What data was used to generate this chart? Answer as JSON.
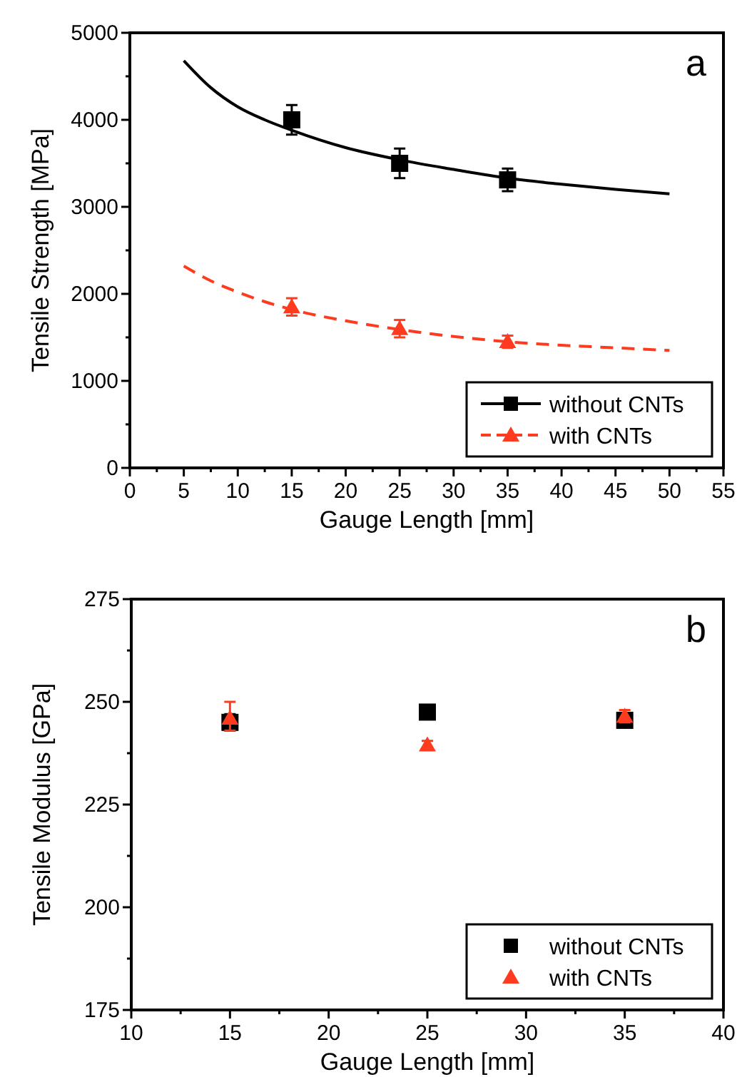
{
  "chart_data": [
    {
      "type": "scatter",
      "xlabel": "Gauge Length [mm]",
      "ylabel": "Tensile Strength [MPa]",
      "annotations": [
        "a"
      ],
      "xlim": [
        0,
        55
      ],
      "ylim": [
        0,
        5000
      ],
      "xticks": [
        0,
        {
          "value": 2.5,
          "label": null
        },
        5,
        {
          "value": 7.5,
          "label": null
        },
        10,
        {
          "value": 12.5,
          "label": null
        },
        15,
        {
          "value": 17.5,
          "label": null
        },
        20,
        {
          "value": 22.5,
          "label": null
        },
        25,
        {
          "value": 27.5,
          "label": null
        },
        30,
        {
          "value": 32.5,
          "label": null
        },
        35,
        {
          "value": 37.5,
          "label": null
        },
        40,
        {
          "value": 42.5,
          "label": null
        },
        45,
        {
          "value": 47.5,
          "label": null
        },
        50,
        {
          "value": 52.5,
          "label": null
        },
        55
      ],
      "yticks": [
        0,
        {
          "value": 500,
          "label": null
        },
        1000,
        {
          "value": 1500,
          "label": null
        },
        2000,
        {
          "value": 2500,
          "label": null
        },
        3000,
        {
          "value": 3500,
          "label": null
        },
        4000,
        {
          "value": 4500,
          "label": null
        },
        5000
      ],
      "legend": "bottom right",
      "grid": false,
      "series": [
        {
          "name": "without CNTs",
          "marker": "square",
          "line_style": "solid",
          "color": "#000000",
          "x": [
            15,
            25,
            35
          ],
          "values": [
            4000,
            3500,
            3310
          ],
          "errors": [
            170,
            170,
            130
          ]
        },
        {
          "name": "with CNTs",
          "marker": "triangle",
          "line_style": "dashed",
          "color": "#ff3b1f",
          "x": [
            15,
            25,
            35
          ],
          "values": [
            1850,
            1600,
            1450
          ],
          "errors": [
            100,
            100,
            70
          ]
        },
        {
          "type": "line",
          "line_style": "solid",
          "color": "#000000",
          "x": [
            5,
            7.5,
            10,
            12.5,
            15,
            20,
            25,
            30,
            35,
            40,
            45,
            50
          ],
          "values": [
            4680,
            4370,
            4150,
            4000,
            3880,
            3680,
            3540,
            3430,
            3330,
            3260,
            3200,
            3150
          ]
        },
        {
          "type": "line",
          "line_style": "dashed",
          "color": "#ff3b1f",
          "x": [
            5,
            7.5,
            10,
            12.5,
            15,
            20,
            25,
            30,
            35,
            40,
            45,
            50
          ],
          "values": [
            2320,
            2150,
            2020,
            1910,
            1820,
            1690,
            1590,
            1510,
            1450,
            1410,
            1380,
            1350
          ]
        }
      ]
    },
    {
      "type": "scatter",
      "xlabel": "Gauge Length [mm]",
      "ylabel": "Tensile Modulus [GPa]",
      "annotations": [
        "b"
      ],
      "xlim": [
        10,
        40
      ],
      "ylim": [
        175,
        275
      ],
      "xticks": [
        10,
        {
          "value": 12.5,
          "label": null
        },
        15,
        {
          "value": 17.5,
          "label": null
        },
        20,
        {
          "value": 22.5,
          "label": null
        },
        25,
        {
          "value": 27.5,
          "label": null
        },
        30,
        {
          "value": 32.5,
          "label": null
        },
        35,
        {
          "value": 37.5,
          "label": null
        },
        40
      ],
      "yticks": [
        175,
        {
          "value": 187.5,
          "label": null
        },
        200,
        {
          "value": 212.5,
          "label": null
        },
        225,
        {
          "value": 237.5,
          "label": null
        },
        250,
        {
          "value": 262.5,
          "label": null
        },
        275
      ],
      "legend": "bottom right",
      "grid": false,
      "series": [
        {
          "name": "without CNTs",
          "marker": "square",
          "color": "#000000",
          "x": [
            15,
            25,
            35
          ],
          "values": [
            245,
            247.5,
            245.5
          ],
          "errors": [
            2,
            null,
            1
          ]
        },
        {
          "name": "with CNTs",
          "marker": "triangle",
          "color": "#ff3b1f",
          "x": [
            15,
            25,
            35
          ],
          "values": [
            246,
            239.5,
            246.5
          ],
          "errors": [
            [
              243,
              250
            ],
            1,
            1.5
          ]
        }
      ]
    }
  ]
}
